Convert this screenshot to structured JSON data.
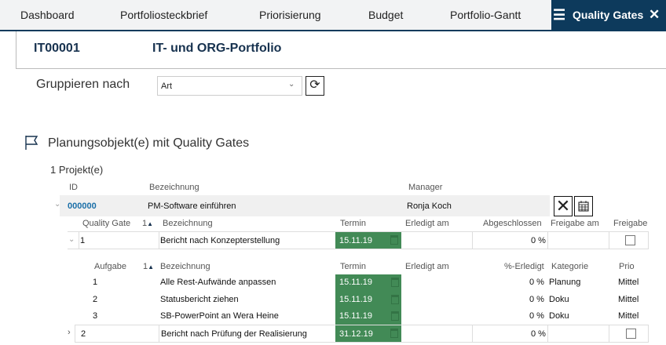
{
  "tabs": {
    "items": [
      "Dashboard",
      "Portfoliosteckbrief",
      "Priorisierung",
      "Budget",
      "Portfolio-Gantt"
    ],
    "active": "Quality Gates"
  },
  "portfolio": {
    "id": "IT00001",
    "name": "IT- und ORG-Portfolio"
  },
  "grouping": {
    "label": "Gruppieren nach",
    "value": "Art"
  },
  "section": {
    "title": "Planungsobjekt(e) mit Quality Gates",
    "count": "1 Projekt(e)"
  },
  "project_columns": [
    "ID",
    "Bezeichnung",
    "Manager"
  ],
  "project": {
    "id": "000000",
    "name": "PM-Software einführen",
    "manager": "Ronja Koch"
  },
  "gate_columns": {
    "gate": "Quality Gate",
    "sort": "1",
    "name": "Bezeichnung",
    "date": "Termin",
    "done": "Erledigt am",
    "closed": "Abgeschlossen",
    "release_date": "Freigabe am",
    "release": "Freigabe"
  },
  "task_columns": {
    "task": "Aufgabe",
    "sort": "1",
    "name": "Bezeichnung",
    "date": "Termin",
    "done": "Erledigt am",
    "pct": "%-Erledigt",
    "category": "Kategorie",
    "prio": "Prio"
  },
  "gates": [
    {
      "nr": "1",
      "name": "Bericht nach Konzepterstellung",
      "date": "15.11.19",
      "closed": "0 %",
      "release": false,
      "expanded": true
    },
    {
      "nr": "2",
      "name": "Bericht nach Prüfung der Realisierung",
      "date": "31.12.19",
      "closed": "0 %",
      "release": false,
      "expanded": false
    }
  ],
  "tasks": [
    {
      "nr": "1",
      "name": "Alle Rest-Aufwände anpassen",
      "date": "15.11.19",
      "pct": "0 %",
      "category": "Planung",
      "prio": "Mittel"
    },
    {
      "nr": "2",
      "name": "Statusbericht ziehen",
      "date": "15.11.19",
      "pct": "0 %",
      "category": "Doku",
      "prio": "Mittel"
    },
    {
      "nr": "3",
      "name": "SB-PowerPoint an Wera Heine",
      "date": "15.11.19",
      "pct": "0 %",
      "category": "Doku",
      "prio": "Mittel"
    }
  ],
  "colors": {
    "accent": "#0d3a5c",
    "date_ok": "#428a56",
    "link": "#1a6fa8"
  }
}
